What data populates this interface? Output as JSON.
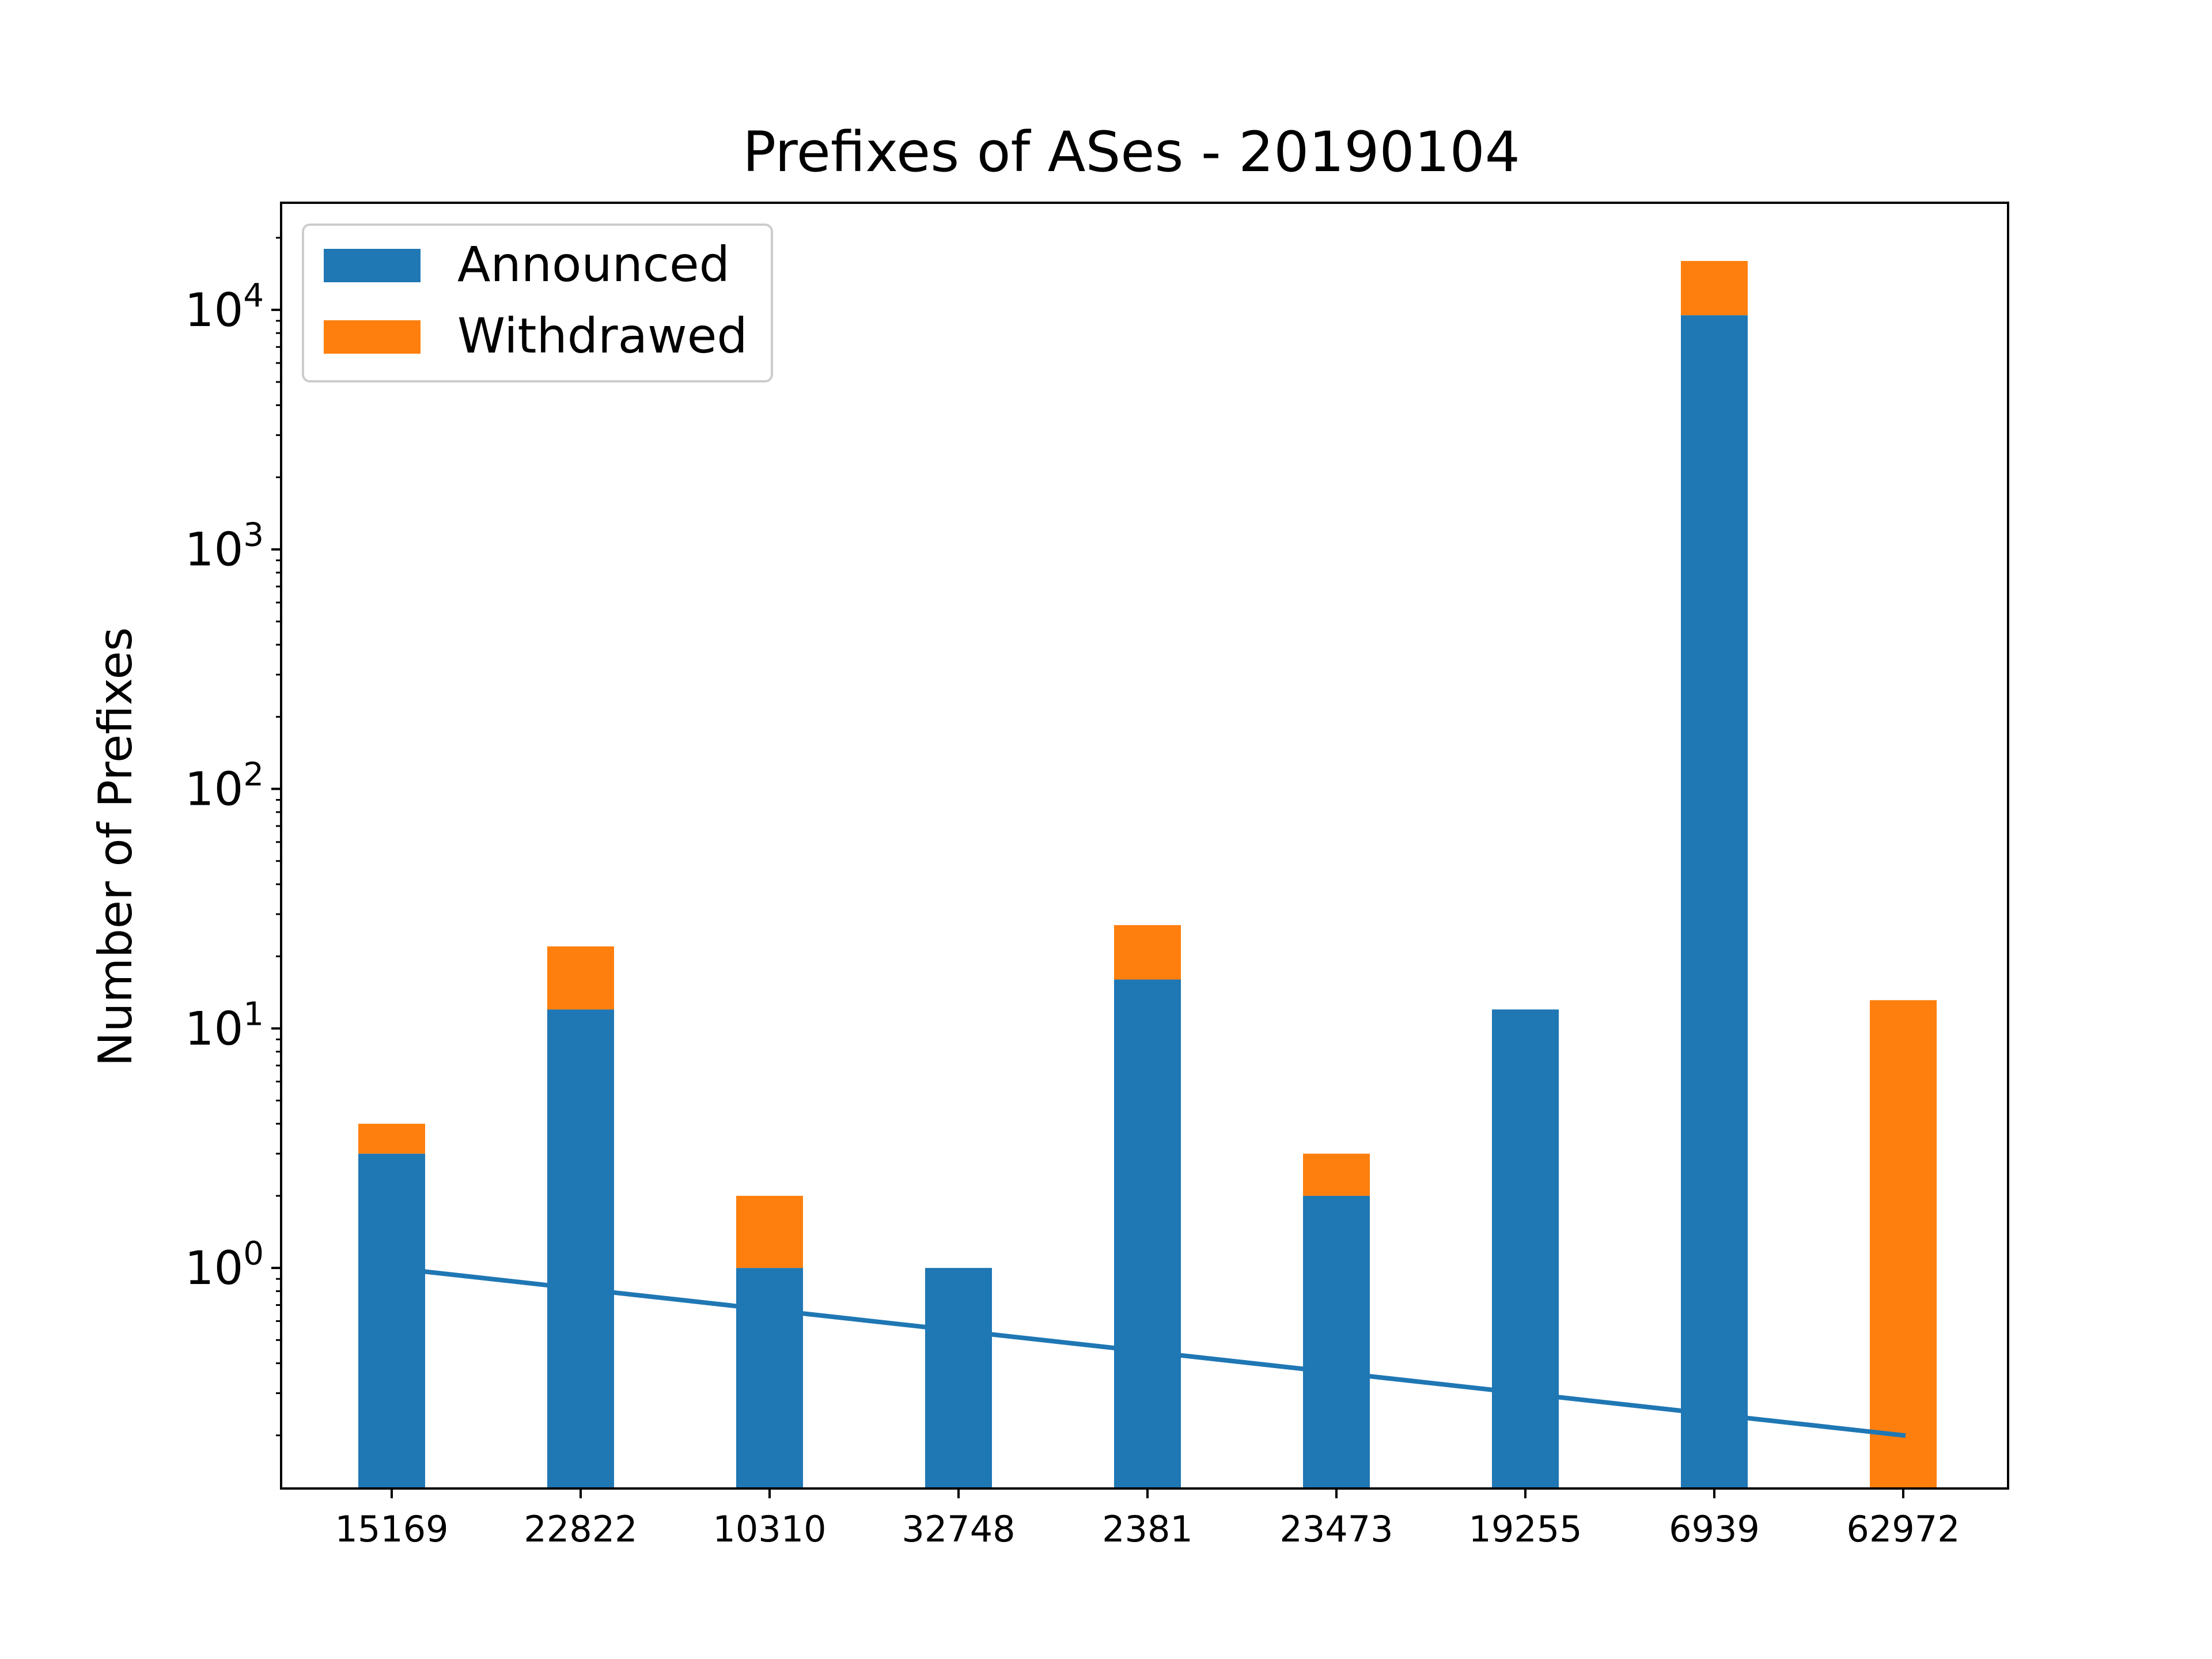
{
  "chart_data": {
    "type": "bar",
    "stacked": true,
    "title": "Prefixes of ASes - 20190104",
    "xlabel": "",
    "ylabel": "Number of Prefixes",
    "yscale": "log",
    "ylim": [
      0.12,
      28000
    ],
    "categories": [
      "15169",
      "22822",
      "10310",
      "32748",
      "2381",
      "23473",
      "19255",
      "6939",
      "62972"
    ],
    "series": [
      {
        "name": "Announced",
        "color": "#1f77b4",
        "values": [
          3,
          12,
          1,
          1,
          16,
          2,
          12,
          9500,
          0
        ]
      },
      {
        "name": "Withdrawed",
        "color": "#ff7f0e",
        "values": [
          1,
          10,
          1,
          0,
          11,
          1,
          0,
          6500,
          13
        ]
      }
    ],
    "trend_line": {
      "color": "#1f77b4",
      "start": 1.0,
      "end": 0.2
    },
    "yticks": [
      {
        "value": 1,
        "base": "10",
        "exp": "0"
      },
      {
        "value": 10,
        "base": "10",
        "exp": "1"
      },
      {
        "value": 100,
        "base": "10",
        "exp": "2"
      },
      {
        "value": 1000,
        "base": "10",
        "exp": "3"
      },
      {
        "value": 10000,
        "base": "10",
        "exp": "4"
      }
    ],
    "legend": {
      "position": "top-left"
    },
    "grid": false
  }
}
